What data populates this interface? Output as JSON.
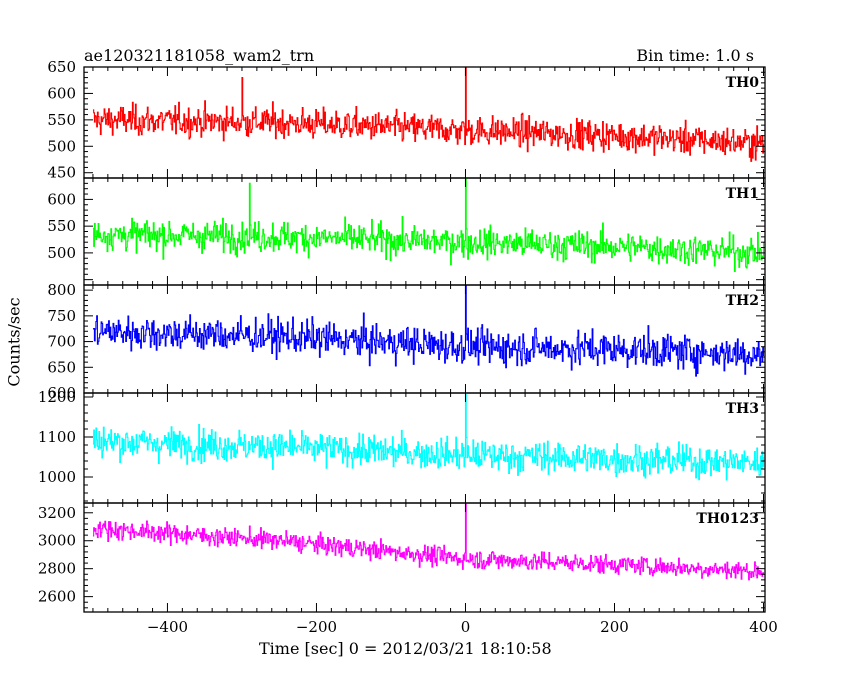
{
  "header": {
    "title": "ae120321181058_wam2_trn",
    "bin_time": "Bin time: 1.0 s"
  },
  "axes": {
    "xlabel": "Time [sec] 0 = 2012/03/21 18:10:58",
    "ylabel": "Counts/sec"
  },
  "colors": {
    "TH0": "#ff0000",
    "TH1": "#00ff00",
    "TH2": "#0000ff",
    "TH3": "#00ffff",
    "TH0123": "#ff00ff",
    "frame": "#000000"
  },
  "chart_data": {
    "type": "line",
    "x_range": [
      -512,
      402
    ],
    "x_ticks": [
      -400,
      -200,
      0,
      200,
      400
    ],
    "shared_x": true,
    "grid": false,
    "panels": [
      {
        "name": "TH0",
        "color": "#ff0000",
        "ylim": [
          440,
          650
        ],
        "yticks": [
          450,
          500,
          550,
          600,
          650
        ],
        "x_start": -500,
        "x_end": 400,
        "trend": [
          [
            -500,
            550
          ],
          [
            -250,
            545
          ],
          [
            0,
            530
          ],
          [
            200,
            520
          ],
          [
            400,
            505
          ]
        ],
        "noise": 25,
        "min": 440,
        "max": 650,
        "spikes": [
          {
            "x": 0,
            "y": 650
          },
          {
            "x": -300,
            "y": 630
          }
        ]
      },
      {
        "name": "TH1",
        "color": "#00ff00",
        "ylim": [
          440,
          640
        ],
        "yticks": [
          500,
          550,
          600
        ],
        "x_start": -500,
        "x_end": 400,
        "trend": [
          [
            -500,
            535
          ],
          [
            -250,
            530
          ],
          [
            0,
            520
          ],
          [
            200,
            512
          ],
          [
            400,
            500
          ]
        ],
        "noise": 25,
        "min": 450,
        "max": 640,
        "spikes": [
          {
            "x": 0,
            "y": 640
          },
          {
            "x": -290,
            "y": 630
          }
        ]
      },
      {
        "name": "TH2",
        "color": "#0000ff",
        "ylim": [
          600,
          810
        ],
        "yticks": [
          600,
          650,
          700,
          750,
          800
        ],
        "x_start": -500,
        "x_end": 400,
        "trend": [
          [
            -500,
            720
          ],
          [
            -250,
            710
          ],
          [
            0,
            690
          ],
          [
            200,
            685
          ],
          [
            400,
            675
          ]
        ],
        "noise": 30,
        "min": 600,
        "max": 810,
        "spikes": [
          {
            "x": 0,
            "y": 810
          }
        ]
      },
      {
        "name": "TH3",
        "color": "#00ffff",
        "ylim": [
          935,
          1210
        ],
        "yticks": [
          1000,
          1100,
          1200
        ],
        "x_start": -500,
        "x_end": 400,
        "trend": [
          [
            -500,
            1090
          ],
          [
            -250,
            1075
          ],
          [
            0,
            1055
          ],
          [
            200,
            1045
          ],
          [
            400,
            1035
          ]
        ],
        "noise": 35,
        "min": 935,
        "max": 1210,
        "spikes": [
          {
            "x": 0,
            "y": 1210
          }
        ]
      },
      {
        "name": "TH0123",
        "color": "#ff00ff",
        "ylim": [
          2490,
          3270
        ],
        "yticks": [
          2600,
          2800,
          3000,
          3200
        ],
        "x_start": -500,
        "x_end": 400,
        "trend": [
          [
            -500,
            3090
          ],
          [
            -250,
            3000
          ],
          [
            0,
            2870
          ],
          [
            200,
            2830
          ],
          [
            400,
            2780
          ]
        ],
        "noise": 60,
        "min": 2650,
        "max": 3270,
        "spikes": [
          {
            "x": 0,
            "y": 3270
          }
        ]
      }
    ]
  }
}
